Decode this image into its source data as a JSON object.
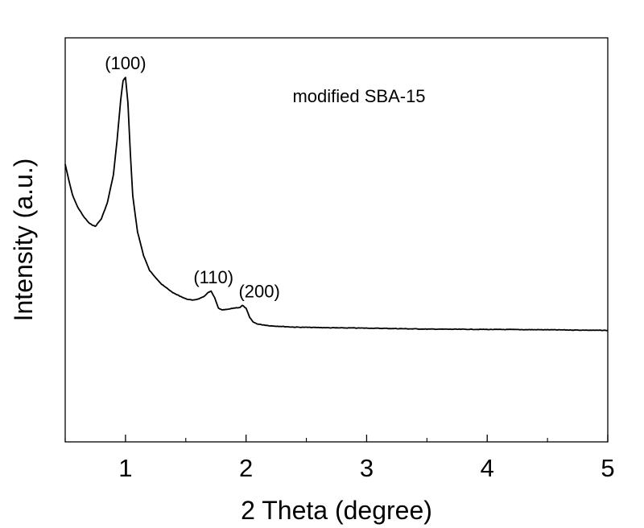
{
  "chart_data": {
    "type": "line",
    "title": "",
    "xlabel": "2 Theta (degree)",
    "ylabel": "Intensity (a.u.)",
    "xlim": [
      0.5,
      5
    ],
    "ylim": [
      0,
      100
    ],
    "x_ticks": [
      1,
      2,
      3,
      4,
      5
    ],
    "x_minor_ticks": [
      0.5,
      1.5,
      2.5,
      3.5,
      4.5
    ],
    "y_ticks_shown": false,
    "grid": false,
    "series_label": "modified SBA-15",
    "series": [
      {
        "name": "modified SBA-15",
        "x": [
          0.5,
          0.53,
          0.56,
          0.6,
          0.65,
          0.7,
          0.75,
          0.8,
          0.85,
          0.9,
          0.93,
          0.96,
          0.98,
          1.0,
          1.02,
          1.04,
          1.06,
          1.08,
          1.1,
          1.15,
          1.2,
          1.3,
          1.4,
          1.5,
          1.55,
          1.6,
          1.65,
          1.68,
          1.71,
          1.74,
          1.77,
          1.8,
          1.85,
          1.9,
          1.95,
          1.97,
          2.0,
          2.03,
          2.06,
          2.1,
          2.2,
          2.4,
          2.7,
          3.0,
          3.5,
          4.0,
          4.5,
          5.0
        ],
        "y": [
          73.6,
          68.7,
          64.3,
          60.8,
          57.8,
          55.6,
          54.7,
          57.0,
          61.9,
          70.4,
          80.8,
          93.0,
          99.0,
          100.0,
          92.2,
          77.0,
          64.0,
          58.4,
          53.0,
          45.8,
          41.3,
          37.1,
          34.4,
          32.7,
          32.3,
          32.6,
          33.3,
          34.5,
          35.0,
          33.0,
          29.9,
          29.3,
          29.5,
          29.9,
          30.1,
          30.7,
          29.8,
          27.0,
          25.6,
          25.0,
          24.5,
          24.1,
          23.9,
          23.8,
          23.5,
          23.4,
          23.3,
          23.1
        ]
      }
    ],
    "annotations": [
      {
        "text": "(100)",
        "x": 1.0,
        "y": 100.0
      },
      {
        "text": "(110)",
        "x": 1.73,
        "y": 35.0
      },
      {
        "text": "(200)",
        "x": 2.11,
        "y": 30.7
      }
    ]
  }
}
